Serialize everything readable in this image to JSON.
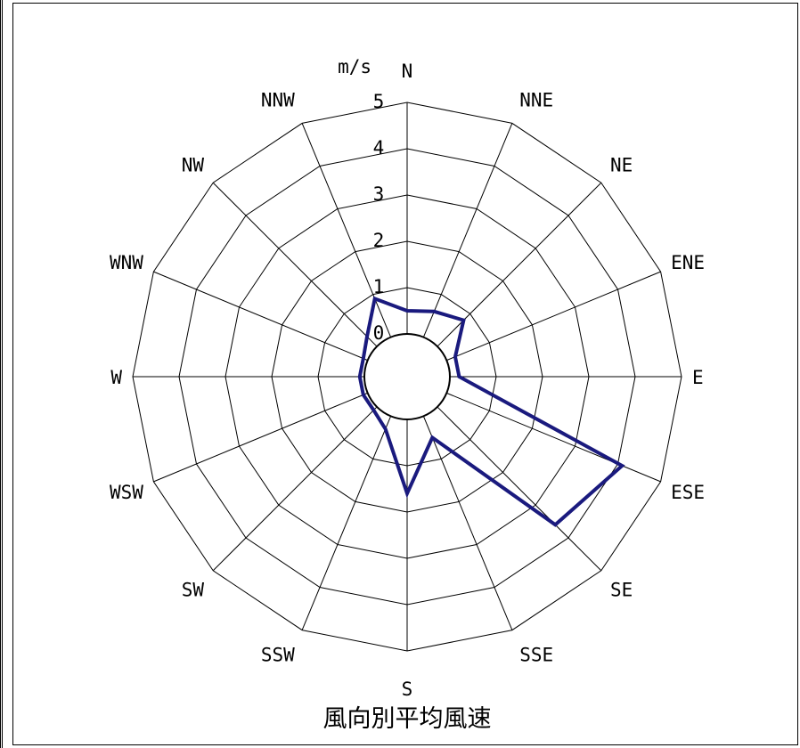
{
  "chart_data": {
    "type": "radar",
    "title": "風向別平均風速",
    "unit": "m/s",
    "radial_ticks": [
      "0",
      "1",
      "2",
      "3",
      "4",
      "5"
    ],
    "rlim": [
      0,
      5
    ],
    "categories": [
      "N",
      "NNE",
      "NE",
      "ENE",
      "E",
      "ESE",
      "SE",
      "SSE",
      "S",
      "SSW",
      "SW",
      "WSW",
      "W",
      "WNW",
      "NW",
      "NNW"
    ],
    "series": [
      {
        "values": [
          0.5,
          0.6,
          0.8,
          0.2,
          0.2,
          4.1,
          3.6,
          0.5,
          1.6,
          0.3,
          0.1,
          0.1,
          0.1,
          0.1,
          0.3,
          0.9
        ],
        "color": "#1a1a7e"
      }
    ],
    "grid": true,
    "line_color": "#1a1a7e"
  }
}
